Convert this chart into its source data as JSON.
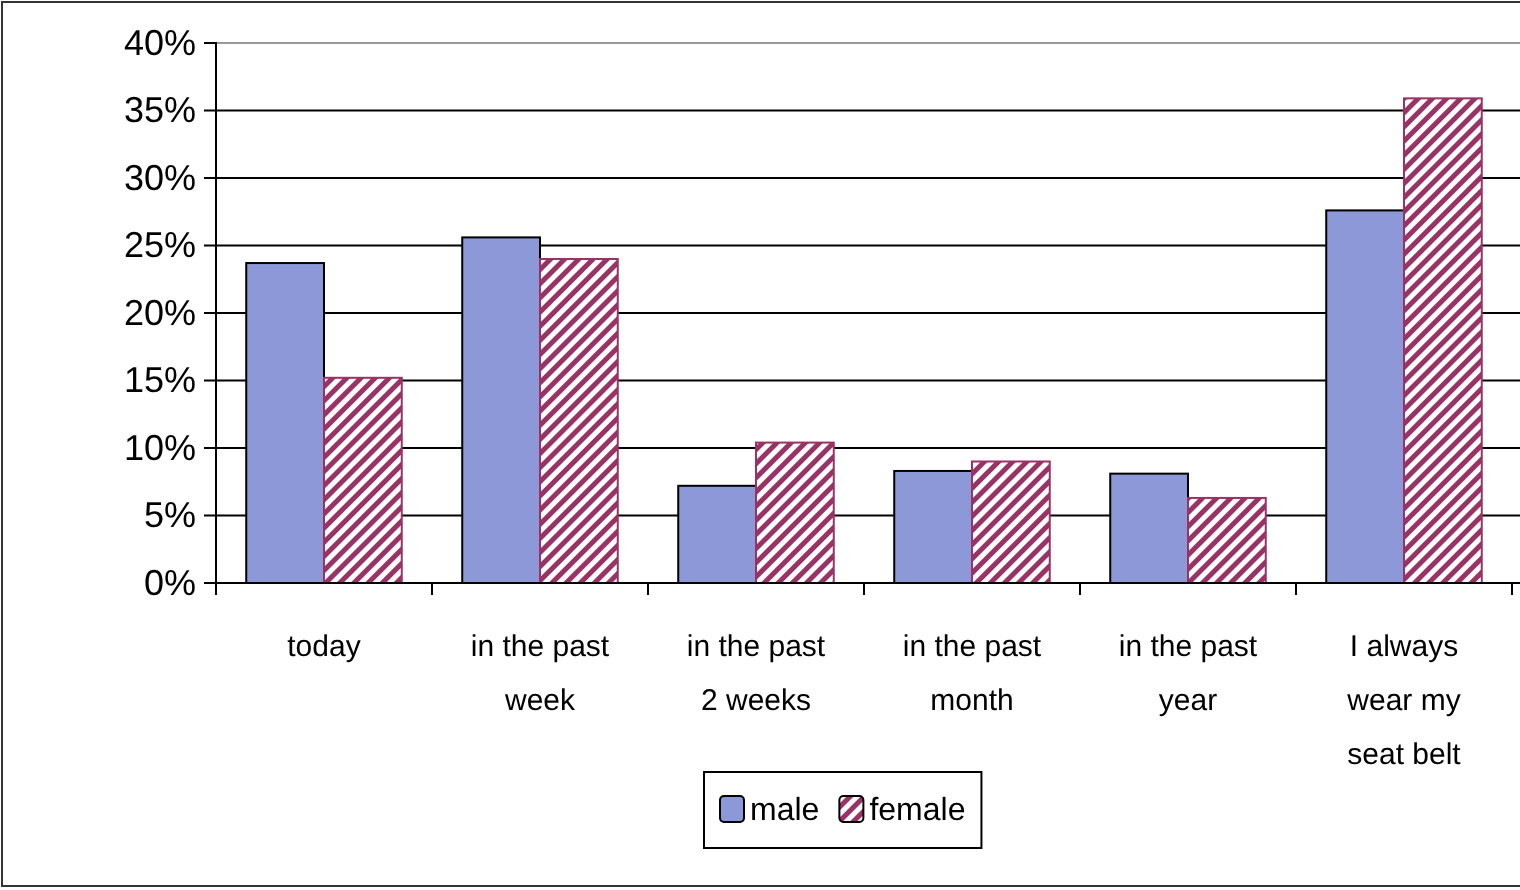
{
  "chart_data": {
    "type": "bar",
    "categories": [
      "today",
      "in the past week",
      "in the past 2 weeks",
      "in the past month",
      "in the past year",
      "I always wear my seat belt"
    ],
    "series": [
      {
        "name": "male",
        "color": "#8c98d8",
        "values": [
          23.7,
          25.6,
          7.2,
          8.3,
          8.1,
          27.6
        ]
      },
      {
        "name": "female",
        "color": "#993366",
        "values": [
          15.2,
          24.0,
          10.4,
          9.0,
          6.3,
          35.9
        ]
      }
    ],
    "ylim": [
      0,
      40
    ],
    "yticks": [
      {
        "value": 0,
        "label": "0%"
      },
      {
        "value": 5,
        "label": "5%"
      },
      {
        "value": 10,
        "label": "10%"
      },
      {
        "value": 15,
        "label": "15%"
      },
      {
        "value": 20,
        "label": "20%"
      },
      {
        "value": 25,
        "label": "25%"
      },
      {
        "value": 30,
        "label": "30%"
      },
      {
        "value": 35,
        "label": "35%"
      },
      {
        "value": 40,
        "label": "40%"
      }
    ],
    "grid": "y",
    "legend": "bottom"
  }
}
